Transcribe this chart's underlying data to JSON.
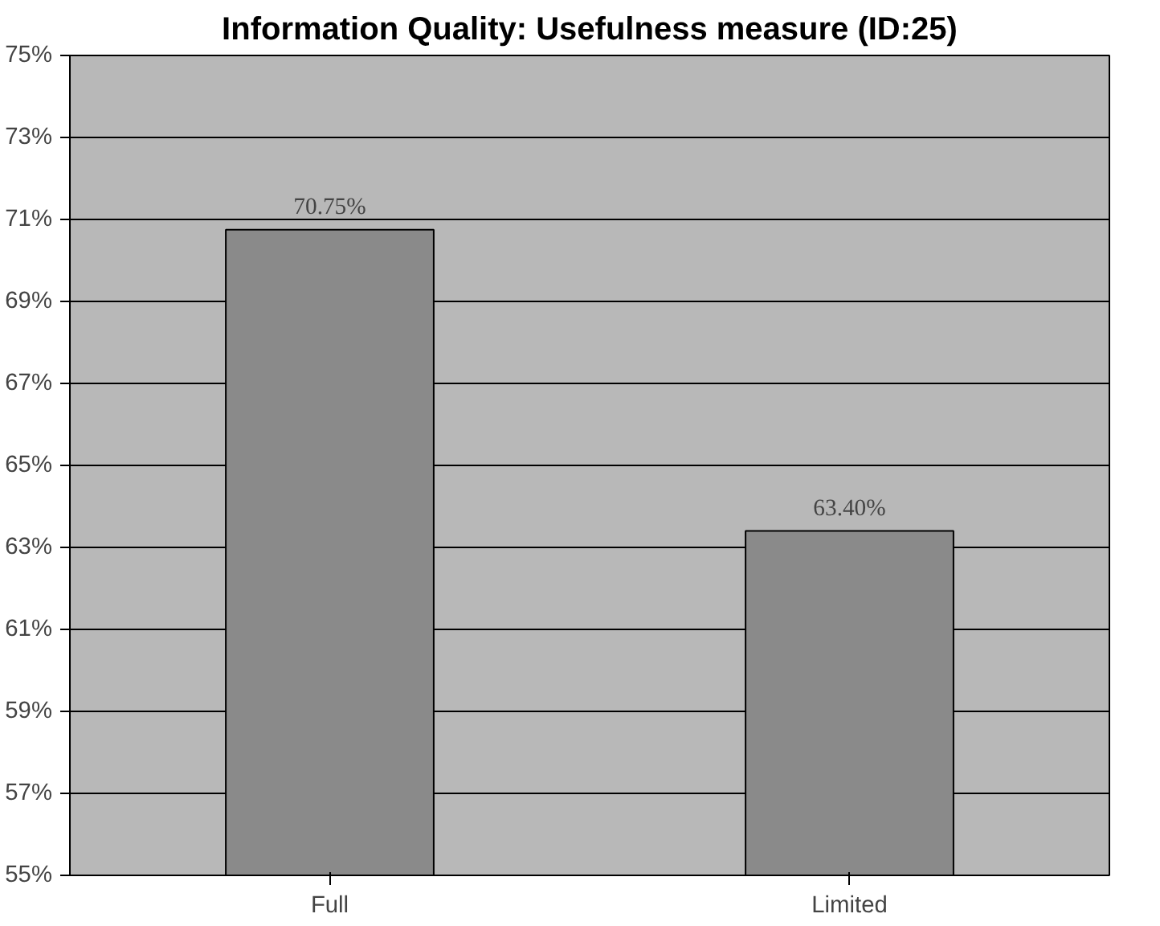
{
  "chart_data": {
    "type": "bar",
    "title": "Information Quality: Usefulness measure (ID:25)",
    "categories": [
      "Full",
      "Limited"
    ],
    "values": [
      70.75,
      63.4
    ],
    "value_labels": [
      "70.75%",
      "63.40%"
    ],
    "color": "#8a8a8a",
    "ylim": [
      55,
      75
    ],
    "yticks": [
      {
        "value": 55,
        "label": "55%"
      },
      {
        "value": 57,
        "label": "57%"
      },
      {
        "value": 59,
        "label": "59%"
      },
      {
        "value": 61,
        "label": "61%"
      },
      {
        "value": 63,
        "label": "63%"
      },
      {
        "value": 65,
        "label": "65%"
      },
      {
        "value": 67,
        "label": "67%"
      },
      {
        "value": 69,
        "label": "69%"
      },
      {
        "value": 71,
        "label": "71%"
      },
      {
        "value": 73,
        "label": "73%"
      },
      {
        "value": 75,
        "label": "75%"
      }
    ],
    "grid": "y"
  }
}
